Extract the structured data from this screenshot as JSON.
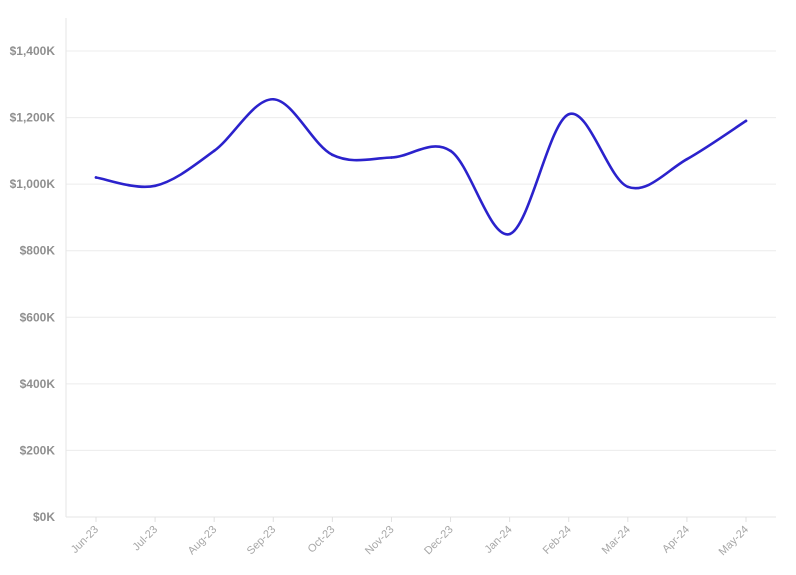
{
  "chart_data": {
    "type": "line",
    "title": "",
    "xlabel": "",
    "ylabel": "",
    "x": [
      "Jun-23",
      "Jul-23",
      "Aug-23",
      "Sep-23",
      "Oct-23",
      "Nov-23",
      "Dec-23",
      "Jan-24",
      "Feb-24",
      "Mar-24",
      "Apr-24",
      "May-24"
    ],
    "series": [
      {
        "values": [
          1020000,
          995000,
          1100000,
          1255000,
          1088000,
          1080000,
          1100000,
          850000,
          1210000,
          992000,
          1075000,
          1190000
        ],
        "color": "#2b22cc"
      }
    ],
    "ylim": [
      0,
      1400000
    ],
    "yticks": [
      0,
      200000,
      400000,
      600000,
      800000,
      1000000,
      1200000,
      1400000
    ],
    "ytick_labels": [
      "$0K",
      "$200K",
      "$400K",
      "$600K",
      "$800K",
      "$1,000K",
      "$1,200K",
      "$1,400K"
    ],
    "grid": true,
    "legend": "none",
    "smooth": true
  }
}
